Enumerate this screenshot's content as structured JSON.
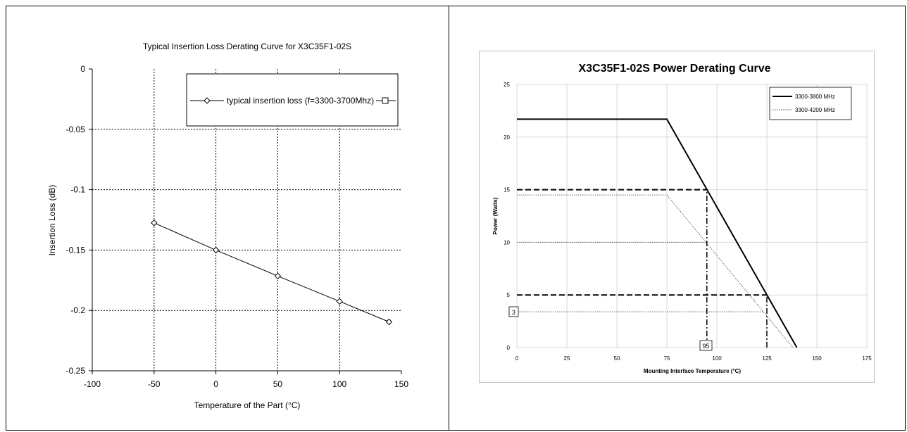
{
  "chart_data": [
    {
      "type": "line",
      "title": "Typical Insertion  Loss Derating Curve for X3C35F1-02S",
      "xlabel": "Temperature of the Part (°C)",
      "ylabel": "Insertion Loss (dB)",
      "xlim": [
        -100,
        150
      ],
      "ylim": [
        -0.25,
        0
      ],
      "xticks": [
        "-100",
        "-50",
        "0",
        "50",
        "100",
        "150"
      ],
      "yticks": [
        "0",
        "-0.05",
        "-0.1",
        "-0.15",
        "-0.2",
        "-0.25"
      ],
      "grid": true,
      "legend": "top-right",
      "series": [
        {
          "name": "typical insertion loss (f=3300-3700Mhz)",
          "marker": "diamond",
          "x": [
            -50,
            0,
            50,
            100,
            140
          ],
          "y": [
            -0.1275,
            -0.15,
            -0.1715,
            -0.1925,
            -0.2095
          ]
        },
        {
          "name": "",
          "marker": "square",
          "x": [],
          "y": []
        }
      ]
    },
    {
      "type": "line",
      "title": "X3C35F1-02S Power Derating Curve",
      "xlabel": "Mounting Interface Temperature (°C)",
      "ylabel": "Power (Watts)",
      "xlim": [
        0,
        175
      ],
      "ylim": [
        0,
        25
      ],
      "xticks": [
        "0",
        "25",
        "50",
        "75",
        "100",
        "125",
        "150",
        "175"
      ],
      "yticks": [
        "0",
        "5",
        "10",
        "15",
        "20",
        "25"
      ],
      "grid": true,
      "legend": "top-right",
      "series": [
        {
          "name": "3300-3800 MHz",
          "style": "solid",
          "x": [
            0,
            75,
            140
          ],
          "y": [
            21.7,
            21.7,
            0
          ]
        },
        {
          "name": "3300-4200 MHz",
          "style": "dotted",
          "x": [
            0,
            75,
            138
          ],
          "y": [
            14.5,
            14.5,
            0
          ]
        }
      ],
      "annotations": [
        {
          "kind": "dashed-h",
          "y": 15,
          "x_from": 0,
          "x_to": 95
        },
        {
          "kind": "dashed-h",
          "y": 5,
          "x_from": 0,
          "x_to": 125
        },
        {
          "kind": "dashdot-v",
          "x": 95,
          "y_from": 0,
          "y_to": 15
        },
        {
          "kind": "dashdot-v",
          "x": 125,
          "y_from": 0,
          "y_to": 5
        },
        {
          "kind": "dotted-h",
          "y": 10,
          "x_from": 0,
          "x_to": 95
        },
        {
          "kind": "dotted-h",
          "y": 3.4,
          "x_from": 0,
          "x_to": 123
        },
        {
          "kind": "boxed-label",
          "text": "95",
          "at_x": 95
        },
        {
          "kind": "boxed-label",
          "text": "3",
          "at_y": 3.4
        }
      ]
    }
  ]
}
